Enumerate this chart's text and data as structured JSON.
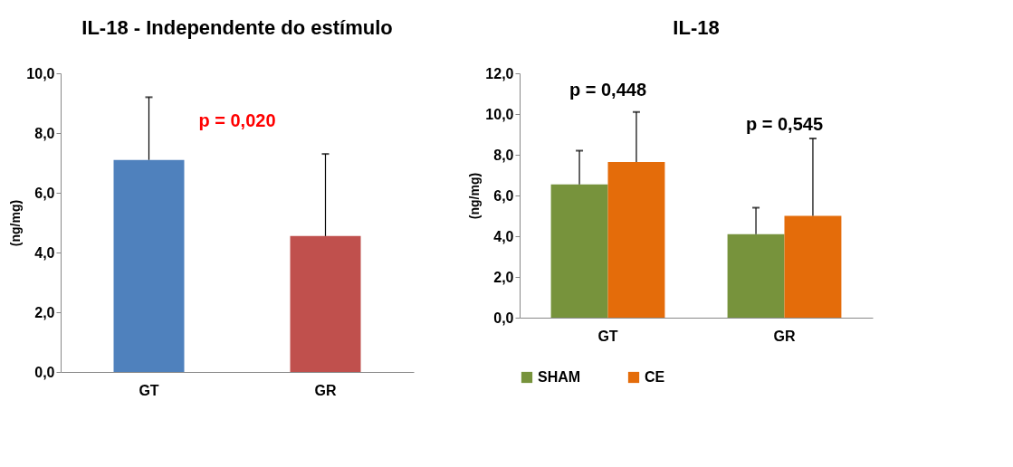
{
  "chart_data": [
    {
      "type": "bar",
      "title": "IL-18 - Independente do estímulo",
      "ylabel": "(ng/mg)",
      "categories": [
        "GT",
        "GR"
      ],
      "values": [
        7.1,
        4.55
      ],
      "errors": [
        2.1,
        2.75
      ],
      "colors": [
        "#4f81bd",
        "#c0504d"
      ],
      "ylim": [
        0,
        10
      ],
      "yticks": [
        {
          "value": 0,
          "label": "0,0"
        },
        {
          "value": 2,
          "label": "2,0"
        },
        {
          "value": 4,
          "label": "4,0"
        },
        {
          "value": 6,
          "label": "6,0"
        },
        {
          "value": 8,
          "label": "8,0"
        },
        {
          "value": 10,
          "label": "10,0"
        }
      ],
      "grid": false,
      "legend": false,
      "annotations": [
        "p = 0,020"
      ]
    },
    {
      "type": "bar",
      "title": "IL-18",
      "ylabel": "(ng/mg)",
      "categories": [
        "GT",
        "GR"
      ],
      "series": [
        {
          "name": "SHAM",
          "color": "#77933c",
          "values": [
            6.55,
            4.1
          ],
          "errors": [
            1.65,
            1.3
          ]
        },
        {
          "name": "CE",
          "color": "#e46c0a",
          "values": [
            7.65,
            5.0
          ],
          "errors": [
            2.45,
            3.8
          ]
        }
      ],
      "ylim": [
        0,
        12
      ],
      "yticks": [
        {
          "value": 0,
          "label": "0,0"
        },
        {
          "value": 2,
          "label": "2,0"
        },
        {
          "value": 4,
          "label": "4,0"
        },
        {
          "value": 6,
          "label": "6,0"
        },
        {
          "value": 8,
          "label": "8,0"
        },
        {
          "value": 10,
          "label": "10,0"
        },
        {
          "value": 12,
          "label": "12,0"
        }
      ],
      "grid": false,
      "legend": "bottom",
      "annotations": [
        "p = 0,448",
        "p = 0,545"
      ]
    }
  ]
}
